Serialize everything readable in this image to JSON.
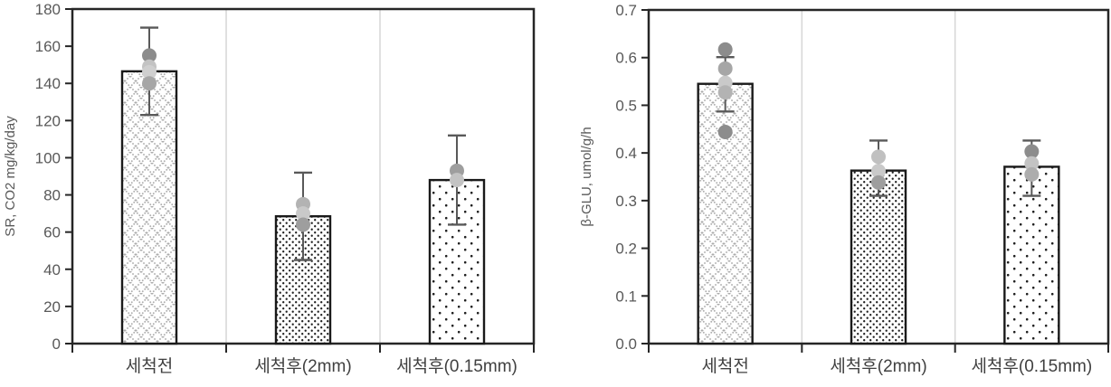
{
  "figure": {
    "background": "#ffffff",
    "axis_color": "#262626",
    "bar_outline_color": "#1a1a1a",
    "tick_label_color": "#595959",
    "category_label_color": "#404040",
    "separator_color": "#d6d6d6",
    "error_bar_color": "#595959",
    "pattern_dot_color": "#1f1f1f",
    "pattern_hatch_color": "#ababab"
  },
  "chart_data": [
    {
      "type": "bar",
      "title": "",
      "xlabel": "",
      "ylabel": "SR, CO2 mg/kg/day",
      "ylim": [
        0,
        180
      ],
      "ystep": 20,
      "y_decimals": 0,
      "grid": "vertical-category-separators-only",
      "legend": "none",
      "categories": [
        "세척전",
        "세척후(2mm)",
        "세척후(0.15mm)"
      ],
      "bars": [
        {
          "value": 146.5,
          "pattern": "crosshatch",
          "error_low": 123,
          "error_high": 170,
          "points": [
            {
              "v": 155,
              "color": "#8c8c8c"
            },
            {
              "v": 149,
              "color": "#c3c3c3"
            },
            {
              "v": 146,
              "color": "#cfcfcf"
            },
            {
              "v": 140,
              "color": "#a6a6a6"
            }
          ]
        },
        {
          "value": 68.5,
          "pattern": "dots-dense",
          "error_low": 45,
          "error_high": 92,
          "points": [
            {
              "v": 75,
              "color": "#b3b3b3"
            },
            {
              "v": 70,
              "color": "#c9c9c9"
            },
            {
              "v": 64,
              "color": "#9e9e9e"
            }
          ]
        },
        {
          "value": 88,
          "pattern": "dots-sparse",
          "error_low": 64,
          "error_high": 112,
          "points": [
            {
              "v": 93,
              "color": "#9e9e9e"
            },
            {
              "v": 88,
              "color": "#c3c3c3"
            }
          ]
        }
      ]
    },
    {
      "type": "bar",
      "title": "",
      "xlabel": "",
      "ylabel": "β-GLU, umol/g/h",
      "ylim": [
        0,
        0.7
      ],
      "ystep": 0.1,
      "y_decimals": 1,
      "grid": "vertical-category-separators-only",
      "legend": "none",
      "categories": [
        "세척전",
        "세척후(2mm)",
        "세척후(0.15mm)"
      ],
      "bars": [
        {
          "value": 0.545,
          "pattern": "crosshatch",
          "error_low": 0.487,
          "error_high": 0.601,
          "points": [
            {
              "v": 0.617,
              "color": "#8c8c8c"
            },
            {
              "v": 0.577,
              "color": "#a6a6a6"
            },
            {
              "v": 0.547,
              "color": "#c9c9c9"
            },
            {
              "v": 0.527,
              "color": "#b3b3b3"
            },
            {
              "v": 0.444,
              "color": "#8c8c8c"
            }
          ]
        },
        {
          "value": 0.363,
          "pattern": "dots-dense",
          "error_low": 0.31,
          "error_high": 0.426,
          "points": [
            {
              "v": 0.392,
              "color": "#c0c0c0"
            },
            {
              "v": 0.362,
              "color": "#c9c9c9"
            },
            {
              "v": 0.338,
              "color": "#9e9e9e"
            }
          ]
        },
        {
          "value": 0.371,
          "pattern": "dots-sparse",
          "error_low": 0.31,
          "error_high": 0.426,
          "points": [
            {
              "v": 0.403,
              "color": "#8c8c8c"
            },
            {
              "v": 0.378,
              "color": "#c3c3c3"
            },
            {
              "v": 0.355,
              "color": "#adadad"
            }
          ]
        }
      ]
    }
  ]
}
